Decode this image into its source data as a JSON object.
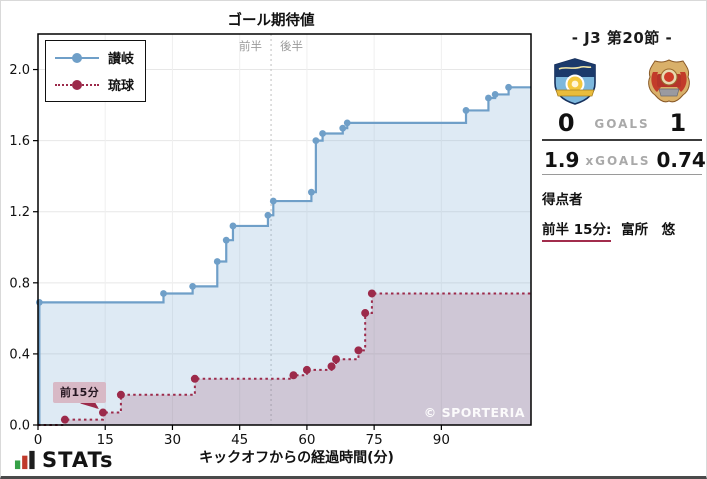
{
  "title": "ゴール期待値",
  "watermark": "© SPORTERIA",
  "colors": {
    "home": "#6f9fc8",
    "home_fill": "rgba(125,170,210,0.25)",
    "away": "#9c2a4a",
    "away_fill": "rgba(140,45,75,0.18)",
    "annotation_bg": "#d8b9c6",
    "scorer_underline": "#a22c4c",
    "grid": "#e7e7e7",
    "half_label": "#9a9a9a"
  },
  "chart_data": {
    "type": "line",
    "subtype": "step-xg",
    "title": "ゴール期待値",
    "xlabel": "キックオフからの経過時間(分)",
    "ylabel": "",
    "xlim": [
      0,
      110
    ],
    "ylim": [
      0,
      2.2
    ],
    "xticks": [
      0,
      15,
      30,
      45,
      60,
      75,
      90
    ],
    "yticks": [
      "0.0",
      "0.4",
      "0.8",
      "1.2",
      "1.6",
      "2.0"
    ],
    "grid": true,
    "legend_position": "upper-left",
    "halftime": {
      "x": 52,
      "first_label": "前半",
      "second_label": "後半"
    },
    "annotation": {
      "text": "前15分",
      "target_x": 14.5,
      "target_y": 0.07
    },
    "series": [
      {
        "name": "讃岐",
        "style": "solid",
        "final_xg": 1.9,
        "points": [
          [
            0.3,
            0.69
          ],
          [
            28,
            0.74
          ],
          [
            34.5,
            0.78
          ],
          [
            40,
            0.92
          ],
          [
            42,
            1.04
          ],
          [
            43.5,
            1.12
          ],
          [
            51.3,
            1.18
          ],
          [
            52.5,
            1.26
          ],
          [
            61,
            1.31
          ],
          [
            62,
            1.6
          ],
          [
            63.5,
            1.64
          ],
          [
            68,
            1.67
          ],
          [
            69,
            1.7
          ],
          [
            95.5,
            1.77
          ],
          [
            100.5,
            1.84
          ],
          [
            102,
            1.86
          ],
          [
            105,
            1.9
          ]
        ]
      },
      {
        "name": "琉球",
        "style": "dotted",
        "final_xg": 0.74,
        "points": [
          [
            6,
            0.03
          ],
          [
            14.5,
            0.07
          ],
          [
            18.5,
            0.17
          ],
          [
            35,
            0.26
          ],
          [
            57,
            0.28
          ],
          [
            60,
            0.31
          ],
          [
            65.5,
            0.33
          ],
          [
            66.5,
            0.37
          ],
          [
            71.5,
            0.42
          ],
          [
            73,
            0.63
          ],
          [
            74.5,
            0.74
          ]
        ]
      }
    ]
  },
  "panel": {
    "title": "- J3 第20節 -",
    "home_team": "讃岐",
    "away_team": "琉球",
    "goals": {
      "home": "0",
      "label": "GOALS",
      "away": "1"
    },
    "xgoals": {
      "home": "1.9",
      "label": "xGOALS",
      "away": "0.74"
    },
    "scorers": {
      "heading": "得点者",
      "entries": [
        {
          "time": "前半 15分:",
          "name": "富所　悠"
        }
      ]
    }
  },
  "footer": {
    "brand": "STATs"
  }
}
